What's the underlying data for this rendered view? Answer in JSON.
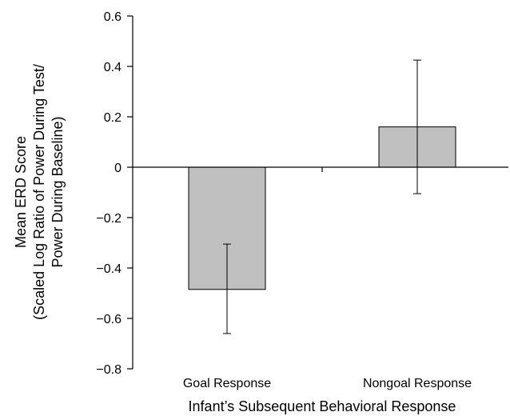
{
  "chart_data": {
    "type": "bar",
    "categories": [
      "Goal Response",
      "Nongoal Response"
    ],
    "values": [
      -0.485,
      0.16
    ],
    "error_upper": [
      -0.305,
      0.425
    ],
    "error_lower": [
      -0.66,
      -0.105
    ],
    "ylim": [
      -0.8,
      0.6
    ],
    "yticks": [
      0.6,
      0.4,
      0.2,
      0,
      -0.2,
      -0.4,
      -0.6,
      -0.8
    ],
    "ytick_labels": [
      "0.6",
      "0.4",
      "0.2",
      "0",
      "−0.2",
      "−0.4",
      "−0.6",
      "−0.8"
    ],
    "xlabel": "Infant’s Subsequent Behavioral Response",
    "ylabel_lines": [
      "Mean ERD Score",
      "(Scaled Log Ratio of Power During Test/",
      "Power During Baseline)"
    ],
    "grid": false,
    "bar_color": "#c0c0c0",
    "bar_edge_color": "#000000"
  }
}
